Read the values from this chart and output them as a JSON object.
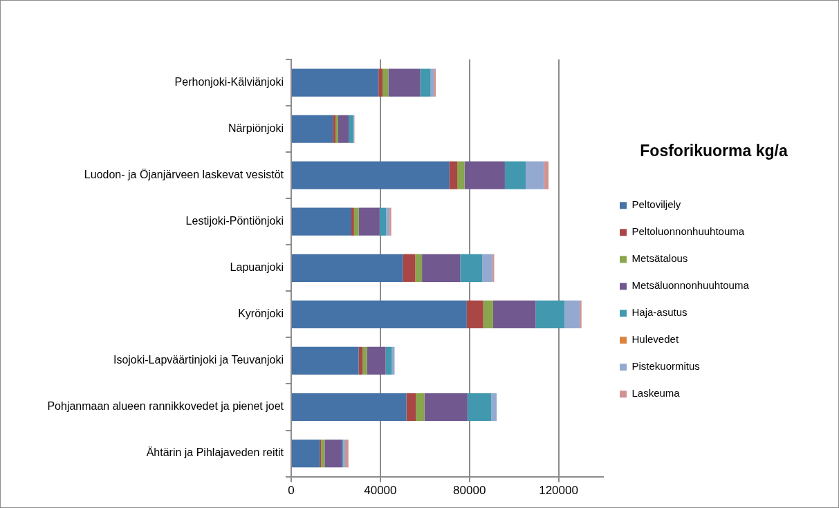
{
  "chart_data": {
    "type": "bar",
    "orientation": "horizontal",
    "stacked": true,
    "legend_title": "Fosforikuorma kg/a",
    "legend": "right",
    "grid": "x",
    "categories": [
      "Perhonjoki-Kälviänjoki",
      "Närpiönjoki",
      "Luodon- ja Öjanjärveen laskevat vesistöt",
      "Lestijoki-Pöntiönjoki",
      "Lapuanjoki",
      "Kyrönjoki",
      "Isojoki-Lapväärtinjoki ja Teuvanjoki",
      "Pohjanmaan alueen rannikkovedet ja pienet joet",
      "Ähtärin ja Pihlajaveden reitit"
    ],
    "xlim": [
      0,
      140000
    ],
    "xticks": [
      0,
      40000,
      80000,
      120000
    ],
    "series": [
      {
        "name": "Peltoviljely",
        "color": "#4572a7",
        "values": [
          39200,
          18700,
          71000,
          27000,
          50200,
          78800,
          30300,
          51700,
          12800
        ]
      },
      {
        "name": "Peltoluonnonhuuhtouma",
        "color": "#aa4643",
        "values": [
          1800,
          1200,
          3500,
          1200,
          5500,
          7400,
          1700,
          4200,
          600
        ]
      },
      {
        "name": "Metsätalous",
        "color": "#89a54e",
        "values": [
          2600,
          1200,
          3300,
          2100,
          3000,
          4400,
          2000,
          3900,
          1600
        ]
      },
      {
        "name": "Metsäluonnonhuuhtouma",
        "color": "#71588f",
        "values": [
          14300,
          4700,
          18100,
          9400,
          17200,
          19100,
          8400,
          19300,
          7700
        ]
      },
      {
        "name": "Haja-asutus",
        "color": "#4198af",
        "values": [
          4700,
          2100,
          9400,
          2900,
          9800,
          13000,
          2800,
          10700,
          600
        ]
      },
      {
        "name": "Hulevedet",
        "color": "#db843d",
        "values": [
          0,
          0,
          0,
          0,
          0,
          0,
          0,
          0,
          0
        ]
      },
      {
        "name": "Pistekuormitus",
        "color": "#93a9cf",
        "values": [
          1400,
          300,
          8100,
          1400,
          4500,
          6800,
          1200,
          2400,
          900
        ]
      },
      {
        "name": "Laskeuma",
        "color": "#d19392",
        "values": [
          900,
          200,
          2100,
          900,
          900,
          800,
          null,
          null,
          1500
        ]
      }
    ]
  }
}
